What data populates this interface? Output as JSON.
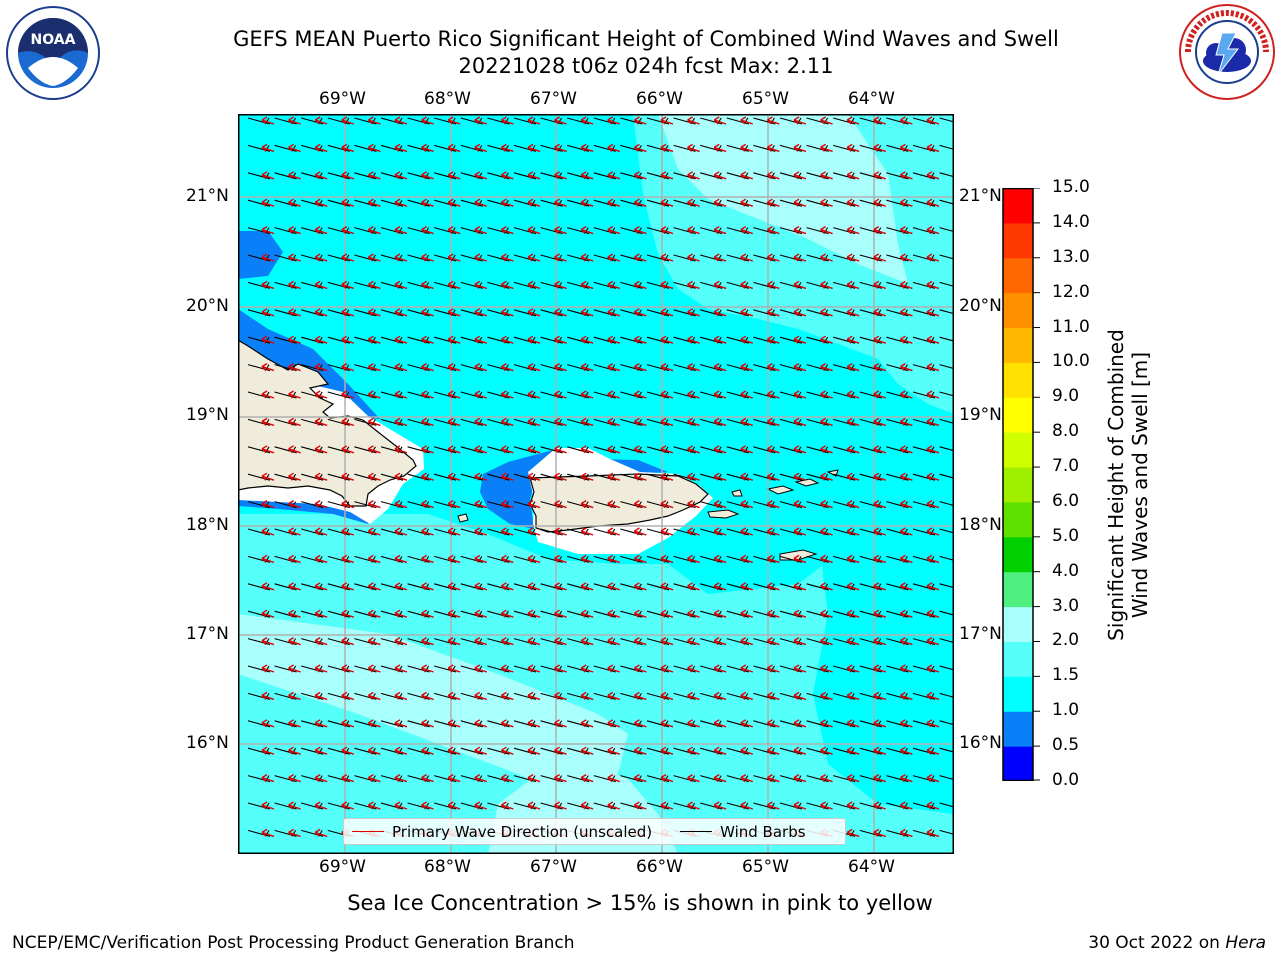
{
  "header": {
    "title_line1": "GEFS MEAN Puerto Rico Significant Height of Combined Wind Waves and Swell",
    "title_line2": "20221028 t06z 024h fcst   Max: 2.11"
  },
  "logos": {
    "left": {
      "name": "NOAA",
      "icon": "noaa-logo-icon"
    },
    "right": {
      "name": "National Weather Service",
      "icon": "nws-logo-icon"
    }
  },
  "map": {
    "lon_labels": [
      "69°W",
      "68°W",
      "67°W",
      "66°W",
      "65°W",
      "64°W"
    ],
    "lat_labels": [
      "21°N",
      "20°N",
      "19°N",
      "18°N",
      "17°N",
      "16°N"
    ],
    "land_color": "#efecdc",
    "colors": {
      "lt": "#55fffa",
      "cy": "#00ffff",
      "bl": "#0a80f8",
      "pale": "#a8fffc"
    }
  },
  "legend": {
    "primary_wave": "Primary Wave Direction (unscaled)",
    "primary_wave_color": "#e00000",
    "wind_barbs": "Wind Barbs",
    "wind_barbs_color": "#000000"
  },
  "colorbar": {
    "label_line1": "Significant Height of Combined",
    "label_line2": "Wind Waves and Swell [m]",
    "ticks": [
      "0.0",
      "0.5",
      "1.0",
      "1.5",
      "2.0",
      "3.0",
      "4.0",
      "5.0",
      "6.0",
      "7.0",
      "8.0",
      "9.0",
      "10.0",
      "11.0",
      "12.0",
      "13.0",
      "14.0",
      "15.0"
    ],
    "colors": [
      "#0000ff",
      "#0a80f8",
      "#00ffff",
      "#55fffa",
      "#a8fffc",
      "#50f080",
      "#00d000",
      "#60e000",
      "#a0ee00",
      "#d0ff00",
      "#ffff00",
      "#ffe000",
      "#ffb800",
      "#ff9000",
      "#ff6800",
      "#ff3800",
      "#ff0000"
    ]
  },
  "notes": {
    "sea_ice": "Sea Ice Concentration > 15% is shown in pink to yellow"
  },
  "footer": {
    "left": "NCEP/EMC/Verification Post Processing Product Generation Branch",
    "right_prefix": "30 Oct 2022 on ",
    "right_machine": "Hera"
  }
}
